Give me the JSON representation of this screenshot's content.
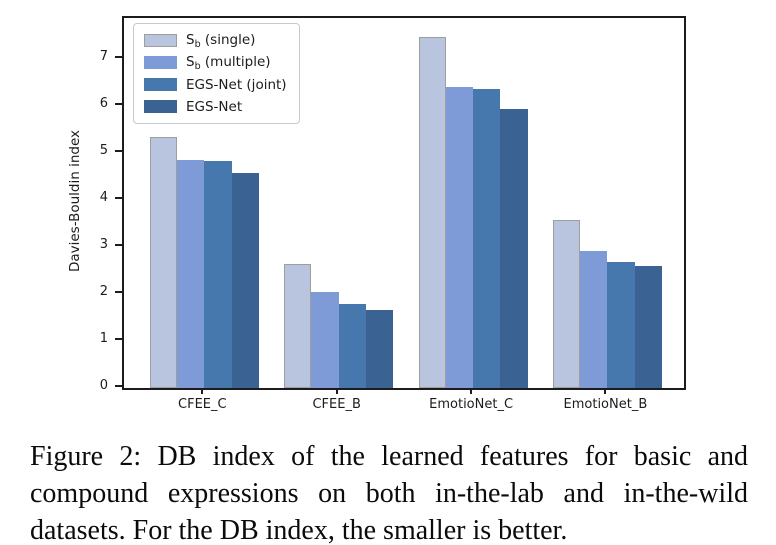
{
  "figure": {
    "caption": "Figure 2: DB index of the learned features for basic and compound expressions on both in-the-lab and in-the-wild datasets. For the DB index, the smaller is better."
  },
  "chart_data": {
    "type": "bar",
    "title": "",
    "xlabel": "",
    "ylabel": "Davies-Bouldin index",
    "categories": [
      "CFEE_C",
      "CFEE_B",
      "EmotioNet_C",
      "EmotioNet_B"
    ],
    "series": [
      {
        "name": "Sb (single)",
        "label_prefix": "S",
        "label_sub": "b",
        "label_rest": " (single)",
        "color": "#b9c5de",
        "edge": "#9e9e9e",
        "values": [
          5.33,
          2.63,
          7.46,
          3.57
        ]
      },
      {
        "name": "Sb (multiple)",
        "label_prefix": "S",
        "label_sub": "b",
        "label_rest": " (multiple)",
        "color": "#7e9bd7",
        "edge": "",
        "values": [
          4.86,
          2.05,
          6.4,
          2.92
        ]
      },
      {
        "name": "EGS-Net (joint)",
        "label_prefix": "EGS-Net (joint)",
        "label_sub": "",
        "label_rest": "",
        "color": "#4778ad",
        "edge": "",
        "values": [
          4.82,
          1.79,
          6.36,
          2.67
        ]
      },
      {
        "name": "EGS-Net",
        "label_prefix": "EGS-Net",
        "label_sub": "",
        "label_rest": "",
        "color": "#3a6293",
        "edge": "",
        "values": [
          4.58,
          1.67,
          5.94,
          2.6
        ]
      }
    ],
    "ylim": [
      0,
      7.87
    ],
    "yticks": [
      0,
      1,
      2,
      3,
      4,
      5,
      6,
      7
    ],
    "legend_position": "upper left",
    "grid": false,
    "axis_color": "#1c1c1c"
  }
}
